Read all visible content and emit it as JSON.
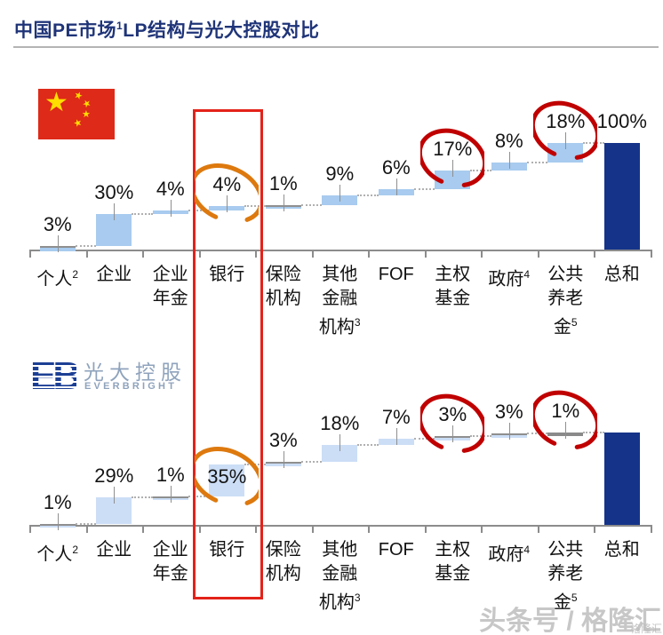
{
  "title": {
    "prefix": "中国PE市场",
    "sup": "1",
    "suffix": "LP结构与光大控股对比"
  },
  "logo": {
    "cn": "光大控股",
    "en": "EVERBRIGHT"
  },
  "watermark": {
    "main": "头条号 / 格隆汇",
    "small": "格隆汇"
  },
  "colors": {
    "title": "#1F3478",
    "bar_top_chart": "#A8CBEF",
    "bar_bottom_chart": "#CCDEF6",
    "total_bar": "#143389",
    "gray_bar": "#8a8a8a",
    "red_circle": "#C00000",
    "orange_circle": "#DD790E",
    "highlight_box": "#E32219",
    "flag_red": "#DE2A18",
    "flag_yellow": "#FFDE00",
    "axis": "#8c8c8c"
  },
  "chart_data": [
    {
      "type": "bar",
      "subtype": "waterfall",
      "title": "中国PE市场",
      "entity_icon": "china-flag",
      "ylim": [
        0,
        100
      ],
      "grid": false,
      "legend": false,
      "categories": [
        "个人²",
        "企业",
        "企业年金",
        "银行",
        "保险机构",
        "其他金融机构³",
        "FOF",
        "主权基金",
        "政府⁴",
        "公共养老金⁵",
        "总和"
      ],
      "values": [
        3,
        30,
        4,
        4,
        1,
        9,
        6,
        17,
        8,
        18,
        100
      ],
      "bars": [
        {
          "cat_lines": [
            "个人"
          ],
          "sup": "2",
          "value": 3,
          "label": "3%",
          "circled": null
        },
        {
          "cat_lines": [
            "企业"
          ],
          "sup": "",
          "value": 30,
          "label": "30%",
          "circled": null
        },
        {
          "cat_lines": [
            "企业",
            "年金"
          ],
          "sup": "",
          "value": 4,
          "label": "4%",
          "circled": null
        },
        {
          "cat_lines": [
            "银行"
          ],
          "sup": "",
          "value": 4,
          "label": "4%",
          "circled": "orange"
        },
        {
          "cat_lines": [
            "保险",
            "机构"
          ],
          "sup": "",
          "value": 1,
          "label": "1%",
          "circled": null
        },
        {
          "cat_lines": [
            "其他",
            "金融",
            "机构"
          ],
          "sup": "3",
          "value": 9,
          "label": "9%",
          "circled": null
        },
        {
          "cat_lines": [
            "FOF"
          ],
          "sup": "",
          "value": 6,
          "label": "6%",
          "circled": null
        },
        {
          "cat_lines": [
            "主权",
            "基金"
          ],
          "sup": "",
          "value": 17,
          "label": "17%",
          "circled": "red"
        },
        {
          "cat_lines": [
            "政府"
          ],
          "sup": "4",
          "value": 8,
          "label": "8%",
          "circled": null
        },
        {
          "cat_lines": [
            "公共",
            "养老",
            "金"
          ],
          "sup": "5",
          "value": 18,
          "label": "18%",
          "circled": "red"
        },
        {
          "cat_lines": [
            "总和"
          ],
          "sup": "",
          "value": 100,
          "label": "100%",
          "circled": null,
          "is_total": true
        }
      ]
    },
    {
      "type": "bar",
      "subtype": "waterfall",
      "title": "光大控股",
      "entity_icon": "everbright-logo",
      "ylim": [
        0,
        101
      ],
      "grid": false,
      "legend": false,
      "categories": [
        "个人²",
        "企业",
        "企业年金",
        "银行",
        "保险机构",
        "其他金融机构³",
        "FOF",
        "主权基金",
        "政府⁴",
        "公共养老金⁵",
        "总和"
      ],
      "values": [
        1,
        29,
        1,
        35,
        3,
        18,
        7,
        3,
        3,
        1,
        101
      ],
      "bars": [
        {
          "cat_lines": [
            "个人"
          ],
          "sup": "2",
          "value": 1,
          "label": "1%",
          "circled": null
        },
        {
          "cat_lines": [
            "企业"
          ],
          "sup": "",
          "value": 29,
          "label": "29%",
          "circled": null
        },
        {
          "cat_lines": [
            "企业",
            "年金"
          ],
          "sup": "",
          "value": 1,
          "label": "1%",
          "circled": null
        },
        {
          "cat_lines": [
            "银行"
          ],
          "sup": "",
          "value": 35,
          "label": "35%",
          "circled": "orange",
          "label_pos": "inside"
        },
        {
          "cat_lines": [
            "保险",
            "机构"
          ],
          "sup": "",
          "value": 3,
          "label": "3%",
          "circled": null
        },
        {
          "cat_lines": [
            "其他",
            "金融",
            "机构"
          ],
          "sup": "3",
          "value": 18,
          "label": "18%",
          "circled": null
        },
        {
          "cat_lines": [
            "FOF"
          ],
          "sup": "",
          "value": 7,
          "label": "7%",
          "circled": null
        },
        {
          "cat_lines": [
            "主权",
            "基金"
          ],
          "sup": "",
          "value": 3,
          "label": "3%",
          "circled": "red"
        },
        {
          "cat_lines": [
            "政府"
          ],
          "sup": "4",
          "value": 3,
          "label": "3%",
          "circled": null
        },
        {
          "cat_lines": [
            "公共",
            "养老",
            "金"
          ],
          "sup": "5",
          "value": 1,
          "label": "1%",
          "circled": "red",
          "bar_style": "gray"
        },
        {
          "cat_lines": [
            "总和"
          ],
          "sup": "",
          "value": 101,
          "label": "",
          "circled": null,
          "is_total": true
        }
      ]
    }
  ]
}
